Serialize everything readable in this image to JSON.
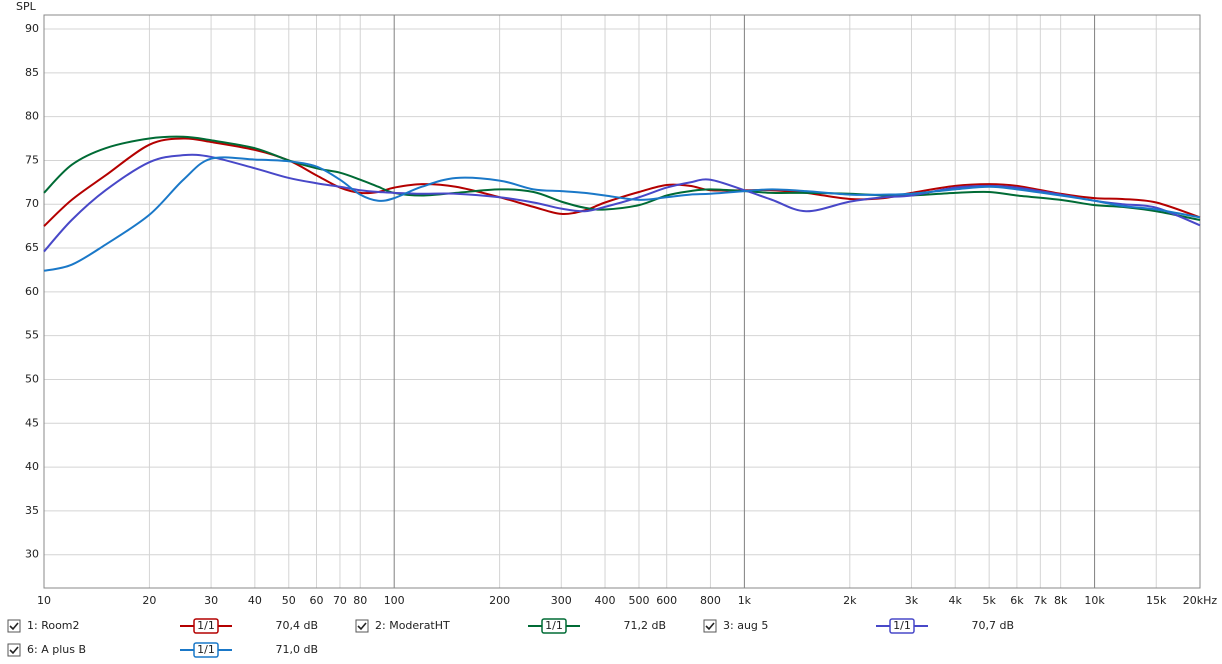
{
  "chart_data": {
    "type": "line",
    "y_label": "SPL",
    "xscale": "log",
    "xlim": [
      10,
      20000
    ],
    "ylim": [
      26.2,
      91.6
    ],
    "grid": true,
    "yticks": [
      30,
      35,
      40,
      45,
      50,
      55,
      60,
      65,
      70,
      75,
      80,
      85,
      90
    ],
    "xticks": [
      10,
      20,
      30,
      40,
      50,
      60,
      70,
      80,
      100,
      200,
      300,
      400,
      500,
      600,
      800,
      {
        "value": 1000,
        "label": "1k"
      },
      {
        "value": 2000,
        "label": "2k"
      },
      {
        "value": 3000,
        "label": "3k"
      },
      {
        "value": 4000,
        "label": "4k"
      },
      {
        "value": 5000,
        "label": "5k"
      },
      {
        "value": 6000,
        "label": "6k"
      },
      {
        "value": 7000,
        "label": "7k"
      },
      {
        "value": 8000,
        "label": "8k"
      },
      {
        "value": 10000,
        "label": "10k"
      },
      {
        "value": 15000,
        "label": "15k"
      },
      {
        "value": 20000,
        "label": "20kHz"
      }
    ],
    "x": [
      10,
      12,
      15,
      20,
      25,
      30,
      40,
      50,
      60,
      70,
      80,
      90,
      100,
      120,
      150,
      200,
      250,
      300,
      350,
      400,
      500,
      600,
      700,
      800,
      1000,
      1200,
      1500,
      2000,
      2500,
      3000,
      4000,
      5000,
      6000,
      8000,
      10000,
      12000,
      15000,
      20000
    ],
    "series": [
      {
        "name": "1: Room2",
        "color": "#b40000",
        "checked": true,
        "smoothing": "1/1",
        "level": "70,4 dB",
        "values": [
          67.5,
          70.5,
          73.3,
          76.8,
          77.5,
          77.1,
          76.2,
          75.0,
          73.3,
          71.9,
          71.3,
          71.4,
          71.9,
          72.3,
          72.0,
          70.8,
          69.7,
          68.9,
          69.3,
          70.2,
          71.4,
          72.2,
          72.1,
          71.6,
          71.6,
          71.6,
          71.3,
          70.6,
          70.7,
          71.3,
          72.1,
          72.3,
          72.1,
          71.2,
          70.7,
          70.6,
          70.2,
          68.5
        ]
      },
      {
        "name": "2: ModeratHT",
        "color": "#006b35",
        "checked": true,
        "smoothing": "1/1",
        "level": "71,2 dB",
        "values": [
          71.3,
          74.5,
          76.4,
          77.5,
          77.7,
          77.3,
          76.4,
          75.0,
          74.1,
          73.6,
          72.8,
          72.0,
          71.3,
          71.0,
          71.3,
          71.7,
          71.4,
          70.3,
          69.6,
          69.4,
          69.9,
          71.0,
          71.5,
          71.7,
          71.5,
          71.3,
          71.3,
          71.2,
          71.0,
          71.0,
          71.3,
          71.4,
          71.0,
          70.5,
          69.9,
          69.7,
          69.2,
          68.2
        ]
      },
      {
        "name": "3: aug 5",
        "color": "#4848c8",
        "checked": true,
        "smoothing": "1/1",
        "level": "70,7 dB",
        "values": [
          64.6,
          68.2,
          71.6,
          74.8,
          75.6,
          75.4,
          74.1,
          73.0,
          72.4,
          72.0,
          71.6,
          71.4,
          71.3,
          71.2,
          71.2,
          70.8,
          70.2,
          69.5,
          69.2,
          69.7,
          70.8,
          71.9,
          72.5,
          72.8,
          71.6,
          70.5,
          69.2,
          70.3,
          70.8,
          71.0,
          71.9,
          72.1,
          71.9,
          71.1,
          70.4,
          70.0,
          69.6,
          67.6
        ]
      },
      {
        "name": "6: A plus B",
        "color": "#1a78c8",
        "checked": true,
        "smoothing": "1/1",
        "level": "71,0 dB",
        "values": [
          62.4,
          63.1,
          65.4,
          68.8,
          72.8,
          75.2,
          75.1,
          74.9,
          74.3,
          72.8,
          71.1,
          70.4,
          70.7,
          72.0,
          73.0,
          72.7,
          71.7,
          71.5,
          71.3,
          71.0,
          70.5,
          70.8,
          71.1,
          71.2,
          71.5,
          71.7,
          71.5,
          71.1,
          71.1,
          71.2,
          71.7,
          72.0,
          71.7,
          71.0,
          70.4,
          69.8,
          69.4,
          68.5
        ]
      }
    ]
  }
}
